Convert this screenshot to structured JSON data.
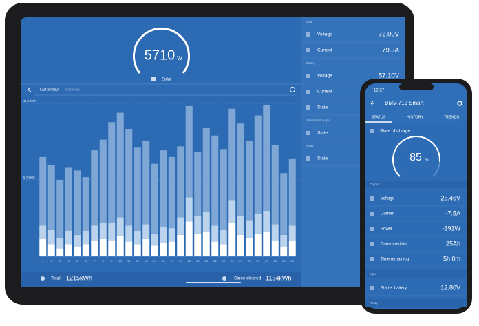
{
  "chart_data": {
    "type": "stacked-bar",
    "categories": [
      "1",
      "2",
      "3",
      "4",
      "5",
      "6",
      "7",
      "8",
      "9",
      "10",
      "11",
      "12",
      "13",
      "14",
      "15",
      "16",
      "17",
      "18",
      "19",
      "20",
      "21",
      "22",
      "23",
      "24",
      "25",
      "26",
      "27",
      "28",
      "29",
      "30"
    ],
    "series": [
      {
        "color": "#ffffff",
        "values": [
          1.3,
          0.9,
          0.6,
          0.9,
          0.7,
          0.9,
          1.2,
          1.3,
          1.2,
          1.5,
          1.1,
          0.9,
          1.3,
          0.8,
          1.0,
          1.1,
          1.6,
          2.6,
          1.7,
          1.8,
          1.1,
          0.9,
          2.5,
          1.6,
          1.4,
          1.7,
          1.8,
          1.2,
          0.7,
          1.2
        ]
      },
      {
        "color": "#bcd3ee",
        "values": [
          1.0,
          1.1,
          0.8,
          1.0,
          0.9,
          1.0,
          1.1,
          1.2,
          1.3,
          1.4,
          1.2,
          1.0,
          1.1,
          0.9,
          1.2,
          1.0,
          1.3,
          1.8,
          1.3,
          1.5,
          1.2,
          1.1,
          1.7,
          1.4,
          1.3,
          1.5,
          1.6,
          1.2,
          0.9,
          1.1
        ]
      },
      {
        "color": "#7fa7d6",
        "values": [
          5.1,
          4.8,
          4.3,
          4.7,
          4.8,
          4.0,
          5.6,
          6.2,
          7.5,
          7.8,
          7.2,
          6.2,
          6.2,
          5.2,
          5.7,
          5.3,
          5.3,
          6.8,
          4.8,
          6.3,
          6.7,
          6.0,
          6.8,
          6.9,
          5.9,
          7.3,
          7.9,
          5.9,
          4.6,
          5.0
        ]
      }
    ],
    "ylim": [
      0,
      11.4
    ],
    "yticks": [
      {
        "value": 5.7,
        "label": "5.7 kWh"
      },
      {
        "value": 11.4,
        "label": "11.4 kWh"
      }
    ],
    "grid": true
  },
  "tablet": {
    "gauge": {
      "value": "5710",
      "unit": "W",
      "label": "Solar"
    },
    "period": "Last 30 days",
    "period_alt": "Yesterday",
    "totals": [
      {
        "label": "Total",
        "value": "1215kWh"
      },
      {
        "label": "Since cleared",
        "value": "1154kWh"
      }
    ],
    "sidebar": [
      {
        "title": "Solar",
        "rows": [
          {
            "label": "Voltage",
            "value": "72.00V"
          },
          {
            "label": "Current",
            "value": "79.3A"
          }
        ]
      },
      {
        "title": "Battery",
        "rows": [
          {
            "label": "Voltage",
            "value": "57.10V"
          },
          {
            "label": "Current"
          },
          {
            "label": "State"
          }
        ]
      },
      {
        "title": "Virtual load output",
        "rows": [
          {
            "label": "State"
          }
        ]
      },
      {
        "title": "Relay",
        "rows": [
          {
            "label": "State"
          }
        ]
      }
    ]
  },
  "phone": {
    "time": "12:27",
    "title": "BMV-712 Smart",
    "tabs": [
      "STATUS",
      "HISTORY",
      "TRENDS"
    ],
    "soc_label": "State of charge",
    "soc": 85,
    "soc_unit": "%",
    "sections": [
      {
        "title": "Output",
        "rows": [
          {
            "label": "Voltage",
            "value": "25.46V"
          },
          {
            "label": "Current",
            "value": "-7.5A"
          },
          {
            "label": "Power",
            "value": "-191W"
          },
          {
            "label": "Consumed Ah",
            "value": "25Ah"
          },
          {
            "label": "Time remaining",
            "value": "5h 0m"
          }
        ]
      },
      {
        "title": "Input",
        "rows": [
          {
            "label": "Starter battery",
            "value": "12.80V"
          }
        ]
      },
      {
        "title": "Relay",
        "rows": []
      }
    ]
  }
}
